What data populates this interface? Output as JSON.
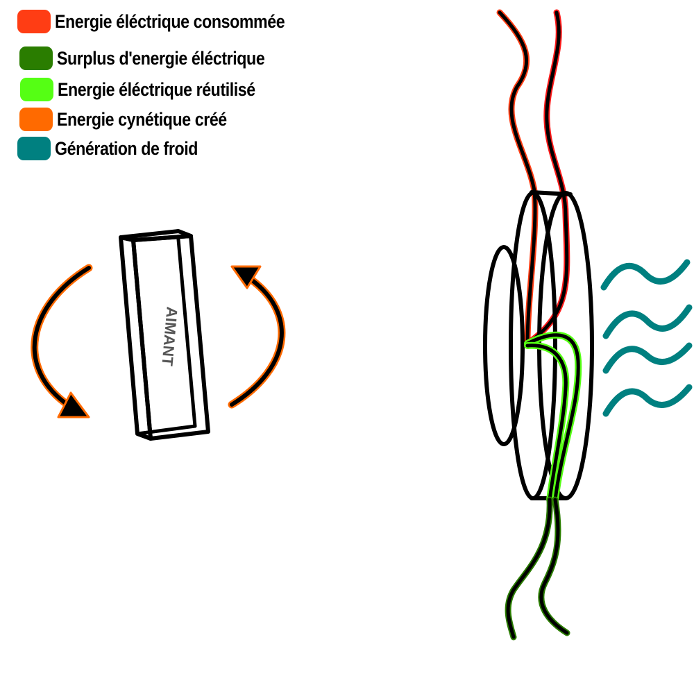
{
  "legend": {
    "items": [
      {
        "label": "Energie éléctrique consommée",
        "color": "#ff3d14"
      },
      {
        "label": "Surplus d'energie éléctrique",
        "color": "#2a7d00"
      },
      {
        "label": "Energie éléctrique réutilisé",
        "color": "#55ff14"
      },
      {
        "label": "Energie cynétique créé",
        "color": "#ff6a00"
      },
      {
        "label": "Génération de froid",
        "color": "#008080"
      }
    ]
  },
  "magnet": {
    "label": "AIMANT"
  },
  "colors": {
    "outline": "#000000",
    "wire_consumed": "#ff1a1a",
    "wire_consumed_alt": "#ff3d14",
    "wire_reused": "#55ff14",
    "wire_surplus": "#2a7d00",
    "arrow_kinetic": "#ff6a00",
    "cold_waves": "#008080"
  }
}
